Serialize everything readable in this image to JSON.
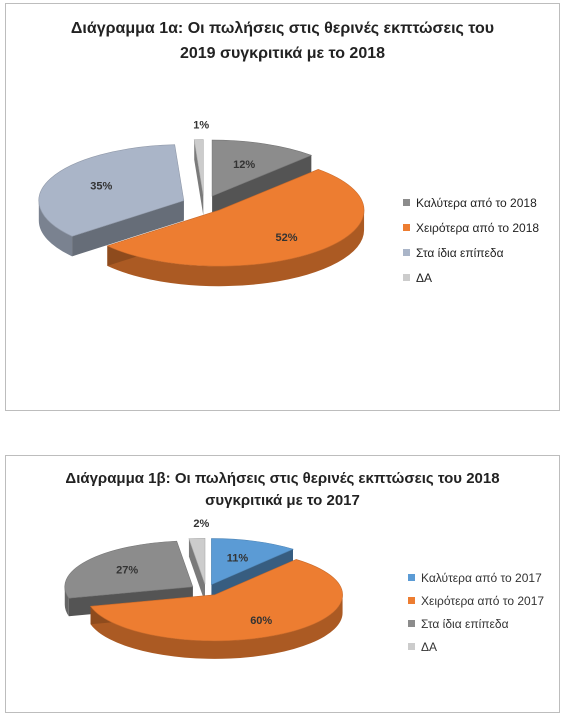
{
  "chart_data": [
    {
      "type": "pie",
      "title": "Διάγραμμα 1α: Οι πωλήσεις στις θερινές εκπτώσεις του 2019 συγκριτικά με το 2018",
      "title_lines": [
        "Διάγραμμα 1α: Οι πωλήσεις στις θερινές εκπτώσεις του",
        "2019 συγκριτικά με το 2018"
      ],
      "categories": [
        "Καλύτερα από το 2018",
        "Χειρότερα από το 2018",
        "Στα ίδια επίπεδα",
        "ΔΑ"
      ],
      "values": [
        12,
        52,
        35,
        1
      ],
      "labels": [
        "12%",
        "52%",
        "35%",
        "1%"
      ],
      "colors": [
        "#8c8c8c",
        "#ed7d31",
        "#aab5c8",
        "#cccccc"
      ],
      "legend_position": "right",
      "style": "3d exploded"
    },
    {
      "type": "pie",
      "title": "Διάγραμμα 1β: Οι πωλήσεις στις θερινές εκπτώσεις του 2018 συγκριτικά με το 2017",
      "title_lines": [
        "Διάγραμμα 1β: Οι πωλήσεις στις θερινές εκπτώσεις του 2018",
        "συγκριτικά με το 2017"
      ],
      "categories": [
        "Καλύτερα από το 2017",
        "Χειρότερα από το 2017",
        "Στα ίδια επίπεδα",
        "ΔΑ"
      ],
      "values": [
        11,
        60,
        27,
        2
      ],
      "labels": [
        "11%",
        "60%",
        "27%",
        "2%"
      ],
      "colors": [
        "#5b9bd5",
        "#ed7d31",
        "#8c8c8c",
        "#cccccc"
      ],
      "legend_position": "right",
      "style": "3d exploded"
    }
  ]
}
